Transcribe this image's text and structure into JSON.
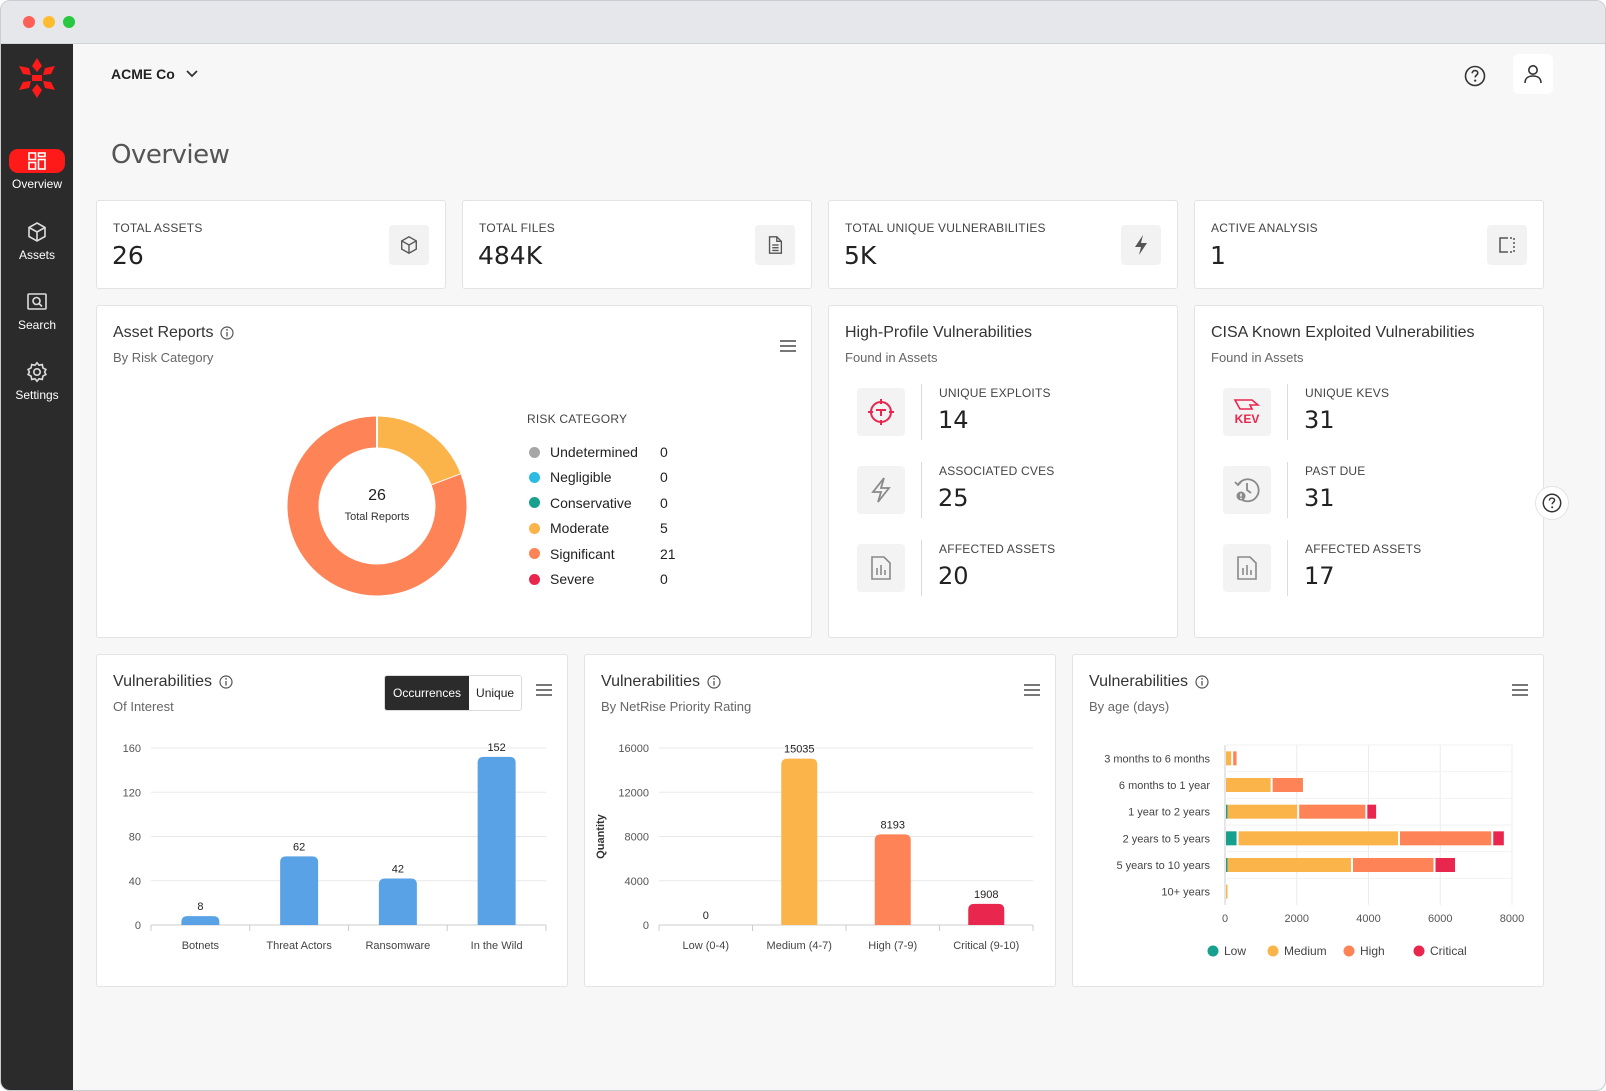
{
  "window": {
    "controls": [
      "close",
      "minimize",
      "maximize"
    ]
  },
  "sidebar": {
    "logo": "netrise-logo-icon",
    "items": [
      {
        "label": "Overview",
        "icon": "grid-icon",
        "active": true
      },
      {
        "label": "Assets",
        "icon": "cube-icon",
        "active": false
      },
      {
        "label": "Search",
        "icon": "search-icon",
        "active": false
      },
      {
        "label": "Settings",
        "icon": "gear-icon",
        "active": false
      }
    ]
  },
  "header": {
    "org": "ACME Co",
    "help_icon": "help-icon",
    "user_icon": "user-icon"
  },
  "page_title": "Overview",
  "stats": [
    {
      "label": "TOTAL ASSETS",
      "value": "26",
      "icon": "cube-icon"
    },
    {
      "label": "TOTAL FILES",
      "value": "484K",
      "icon": "file-icon"
    },
    {
      "label": "TOTAL UNIQUE VULNERABILITIES",
      "value": "5K",
      "icon": "lightning-icon"
    },
    {
      "label": "ACTIVE ANALYSIS",
      "value": "1",
      "icon": "analysis-icon"
    }
  ],
  "asset_reports": {
    "title": "Asset Reports",
    "subtitle": "By Risk Category",
    "center_value": "26",
    "center_label": "Total Reports",
    "legend_title": "RISK CATEGORY",
    "legend": [
      {
        "label": "Undetermined",
        "value": "0",
        "color": "#a6a6a6"
      },
      {
        "label": "Negligible",
        "value": "0",
        "color": "#2bbbe3"
      },
      {
        "label": "Conservative",
        "value": "0",
        "color": "#18a08f"
      },
      {
        "label": "Moderate",
        "value": "5",
        "color": "#fbb44a"
      },
      {
        "label": "Significant",
        "value": "21",
        "color": "#fe8356"
      },
      {
        "label": "Severe",
        "value": "0",
        "color": "#e8264e"
      }
    ]
  },
  "high_profile": {
    "title": "High-Profile Vulnerabilities",
    "subtitle": "Found in Assets",
    "rows": [
      {
        "label": "UNIQUE EXPLOITS",
        "value": "14",
        "icon": "target-icon"
      },
      {
        "label": "ASSOCIATED CVES",
        "value": "25",
        "icon": "lightning-icon"
      },
      {
        "label": "AFFECTED ASSETS",
        "value": "20",
        "icon": "asset-report-icon"
      }
    ]
  },
  "cisa": {
    "title": "CISA Known Exploited Vulnerabilities",
    "subtitle": "Found in Assets",
    "rows": [
      {
        "label": "UNIQUE KEVS",
        "value": "31",
        "icon": "kev-icon"
      },
      {
        "label": "PAST DUE",
        "value": "31",
        "icon": "clock-alert-icon"
      },
      {
        "label": "AFFECTED ASSETS",
        "value": "17",
        "icon": "asset-report-icon"
      }
    ]
  },
  "vuln_interest": {
    "title": "Vulnerabilities",
    "subtitle": "Of Interest",
    "toggle": {
      "active": "Occurrences",
      "inactive": "Unique"
    }
  },
  "vuln_priority": {
    "title": "Vulnerabilities",
    "subtitle": "By NetRise Priority Rating"
  },
  "vuln_age": {
    "title": "Vulnerabilities",
    "subtitle": "By age (days)"
  },
  "chart_data": [
    {
      "type": "bar",
      "categories": [
        "Botnets",
        "Threat Actors",
        "Ransomware",
        "In the Wild"
      ],
      "values": [
        8,
        62,
        42,
        152
      ],
      "ylim": [
        0,
        160
      ],
      "yticks": [
        0,
        40,
        80,
        120,
        160
      ],
      "color": "#5aa2e6",
      "grid": true
    },
    {
      "type": "bar",
      "categories": [
        "Low (0-4)",
        "Medium (4-7)",
        "High (7-9)",
        "Critical (9-10)"
      ],
      "values": [
        0,
        15035,
        8193,
        1908
      ],
      "colors": [
        "#2bbbe3",
        "#fbb44a",
        "#fe8356",
        "#e8264e"
      ],
      "ylabel": "Quantity",
      "ylim": [
        0,
        16000
      ],
      "yticks": [
        0,
        4000,
        8000,
        12000,
        16000
      ],
      "grid": true
    },
    {
      "type": "bar",
      "orientation": "horizontal",
      "stacked": true,
      "categories": [
        "3 months to 6 months",
        "6 months to 1 year",
        "1 year to 2 years",
        "2 years to 5 years",
        "5 years to 10 years",
        "10+ years"
      ],
      "series": [
        {
          "name": "Low",
          "color": "#18a08f",
          "values": [
            0,
            0,
            40,
            350,
            40,
            0
          ]
        },
        {
          "name": "Medium",
          "color": "#fbb44a",
          "values": [
            200,
            1300,
            2000,
            4500,
            3500,
            60
          ]
        },
        {
          "name": "High",
          "color": "#fe8356",
          "values": [
            150,
            900,
            1900,
            2600,
            2300,
            0
          ]
        },
        {
          "name": "Critical",
          "color": "#e8264e",
          "values": [
            0,
            0,
            300,
            350,
            600,
            0
          ]
        }
      ],
      "xlim": [
        0,
        8000
      ],
      "xticks": [
        0,
        2000,
        4000,
        6000,
        8000
      ],
      "legend_position": "bottom",
      "grid": true
    }
  ]
}
